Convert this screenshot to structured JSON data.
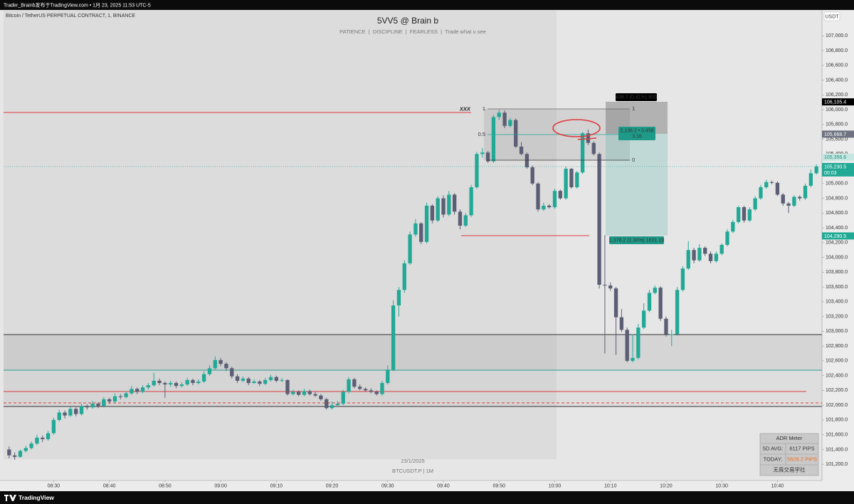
{
  "header": {
    "watermark": "Trader_Brainb发布于TradingView.com • 1月 23, 2025 11:53 UTC-5",
    "brand": "TradingView"
  },
  "chart_data": {
    "type": "candlestick",
    "symbol": "Bitcoin / TetherUS PERPETUAL CONTRACT, 1, BINANCE",
    "title": "5VV5 @ Brain b",
    "subtitle": "PATIENCE  |  DISCIPLINE  |  FEARLESS  |  Trade what u see",
    "currency": "USDT",
    "date_label": "23/1/2025",
    "ticker_label": "BTCUSDT.P | 1M",
    "up_color": "#22a996",
    "down_color": "#5b5e74",
    "xlim": [
      "08:21",
      "10:48"
    ],
    "xticks": [
      "08:30",
      "08:40",
      "08:50",
      "09:00",
      "09:10",
      "09:20",
      "09:30",
      "09:40",
      "09:50",
      "10:00",
      "10:10",
      "10:20",
      "10:30",
      "10:40"
    ],
    "ylim": [
      100980,
      107340
    ],
    "yticks": [
      {
        "value": 101200,
        "label": "101,200.0"
      },
      {
        "value": 101400,
        "label": "101,400.0"
      },
      {
        "value": 101600,
        "label": "101,600.0"
      },
      {
        "value": 101800,
        "label": "101,800.0"
      },
      {
        "value": 102000,
        "label": "102,000.0"
      },
      {
        "value": 102200,
        "label": "102,200.0"
      },
      {
        "value": 102400,
        "label": "102,400.0"
      },
      {
        "value": 102600,
        "label": "102,600.0"
      },
      {
        "value": 102800,
        "label": "102,800.0"
      },
      {
        "value": 103000,
        "label": "103,000.0"
      },
      {
        "value": 103200,
        "label": "103,200.0"
      },
      {
        "value": 103400,
        "label": "103,400.0"
      },
      {
        "value": 103600,
        "label": "103,600.0"
      },
      {
        "value": 103800,
        "label": "103,800.0"
      },
      {
        "value": 104000,
        "label": "104,000.0"
      },
      {
        "value": 104200,
        "label": "104,200.0"
      },
      {
        "value": 104400,
        "label": "104,400.0"
      },
      {
        "value": 104600,
        "label": "104,600.0"
      },
      {
        "value": 104800,
        "label": "104,800.0"
      },
      {
        "value": 105000,
        "label": "105,000.0"
      },
      {
        "value": 105200,
        "label": "105,200.0"
      },
      {
        "value": 105400,
        "label": "105,400.0"
      },
      {
        "value": 105600,
        "label": "105,600.0"
      },
      {
        "value": 105800,
        "label": "105,800.0"
      },
      {
        "value": 106000,
        "label": "106,000.0"
      },
      {
        "value": 106200,
        "label": "106,200.0"
      },
      {
        "value": 106400,
        "label": "106,400.0"
      },
      {
        "value": 106600,
        "label": "106,600.0"
      },
      {
        "value": 106800,
        "label": "106,800.0"
      },
      {
        "value": 107000,
        "label": "107,000.0"
      }
    ],
    "price_tags": [
      {
        "value": 106105.4,
        "label": "106,105.4",
        "color": "#000000",
        "text_color": "#ffffff"
      },
      {
        "value": 105668.7,
        "label": "105,668.7",
        "color": "#6f7280",
        "text_color": "#ffffff"
      },
      {
        "value": 105356.6,
        "label": "105,356.6",
        "color": "#c5e6e1",
        "text_color": "#1f8f80"
      },
      {
        "value": 104290.5,
        "label": "104,290.5",
        "color": "#22a996",
        "text_color": "#ffffff"
      }
    ],
    "last_price": {
      "value": 105230.5,
      "label": "105,230.5",
      "countdown": "00:03",
      "color": "#22a996"
    },
    "annotations": {
      "level_name": "xxx",
      "fib_top_left": "1",
      "fib_mid": "0.5",
      "fib_top_right": "1",
      "fib_bottom_right": "0",
      "target_label": "436.7 (0.41%) 800",
      "ratio_line1": "2,136.2 • 0.458",
      "ratio_line2": "3.16",
      "stop_label": "1,378.2 (1.30%) 1631.19"
    },
    "adr_meter": {
      "title": "ADR Meter",
      "rows": [
        [
          "5D AVG:",
          "6117 PIPS"
        ],
        [
          "TODAY:",
          "5629.2 PIPS"
        ]
      ],
      "footer": "无畏交易学社"
    },
    "x": [
      "08:22",
      "08:23",
      "08:24",
      "08:25",
      "08:26",
      "08:27",
      "08:28",
      "08:29",
      "08:30",
      "08:31",
      "08:32",
      "08:33",
      "08:34",
      "08:35",
      "08:36",
      "08:37",
      "08:38",
      "08:39",
      "08:40",
      "08:41",
      "08:42",
      "08:43",
      "08:44",
      "08:45",
      "08:46",
      "08:47",
      "08:48",
      "08:49",
      "08:50",
      "08:51",
      "08:52",
      "08:53",
      "08:54",
      "08:55",
      "08:56",
      "08:57",
      "08:58",
      "08:59",
      "09:00",
      "09:01",
      "09:02",
      "09:03",
      "09:04",
      "09:05",
      "09:06",
      "09:07",
      "09:08",
      "09:09",
      "09:10",
      "09:11",
      "09:12",
      "09:13",
      "09:14",
      "09:15",
      "09:16",
      "09:17",
      "09:18",
      "09:19",
      "09:20",
      "09:21",
      "09:22",
      "09:23",
      "09:24",
      "09:25",
      "09:26",
      "09:27",
      "09:28",
      "09:29",
      "09:30",
      "09:31",
      "09:32",
      "09:33",
      "09:34",
      "09:35",
      "09:36",
      "09:37",
      "09:38",
      "09:39",
      "09:40",
      "09:41",
      "09:42",
      "09:43",
      "09:44",
      "09:45",
      "09:46",
      "09:47",
      "09:48",
      "09:49",
      "09:50",
      "09:51",
      "09:52",
      "09:53",
      "09:54",
      "09:55",
      "09:56",
      "09:57",
      "09:58",
      "09:59",
      "10:00",
      "10:01",
      "10:02",
      "10:03",
      "10:04",
      "10:05",
      "10:06",
      "10:07",
      "10:08",
      "10:09",
      "10:10",
      "10:11",
      "10:12",
      "10:13",
      "10:14",
      "10:15",
      "10:16",
      "10:17",
      "10:18",
      "10:19",
      "10:20",
      "10:21",
      "10:22",
      "10:23",
      "10:24",
      "10:25",
      "10:26",
      "10:27",
      "10:28",
      "10:29",
      "10:30",
      "10:31",
      "10:32",
      "10:33",
      "10:34",
      "10:35",
      "10:36",
      "10:37",
      "10:38",
      "10:39",
      "10:40",
      "10:41",
      "10:42",
      "10:43",
      "10:44",
      "10:45",
      "10:46",
      "10:47"
    ],
    "ohlc": [
      [
        101400,
        101440,
        101280,
        101320
      ],
      [
        101320,
        101360,
        101260,
        101300
      ],
      [
        101300,
        101400,
        101290,
        101380
      ],
      [
        101380,
        101450,
        101360,
        101420
      ],
      [
        101420,
        101510,
        101400,
        101480
      ],
      [
        101480,
        101600,
        101460,
        101560
      ],
      [
        101560,
        101590,
        101500,
        101540
      ],
      [
        101540,
        101650,
        101520,
        101620
      ],
      [
        101620,
        101830,
        101600,
        101800
      ],
      [
        101800,
        101940,
        101780,
        101900
      ],
      [
        101900,
        101930,
        101820,
        101860
      ],
      [
        101860,
        101980,
        101840,
        101950
      ],
      [
        101950,
        101970,
        101850,
        101880
      ],
      [
        101880,
        102020,
        101860,
        101990
      ],
      [
        101990,
        102010,
        101940,
        101970
      ],
      [
        101970,
        102060,
        101950,
        102020
      ],
      [
        102020,
        102040,
        101960,
        101990
      ],
      [
        101990,
        102110,
        101970,
        102080
      ],
      [
        102080,
        102100,
        102020,
        102050
      ],
      [
        102050,
        102160,
        102030,
        102120
      ],
      [
        102120,
        102150,
        102080,
        102110
      ],
      [
        102110,
        102190,
        102090,
        102160
      ],
      [
        102160,
        102260,
        102140,
        102220
      ],
      [
        102220,
        102240,
        102150,
        102180
      ],
      [
        102180,
        102270,
        102160,
        102240
      ],
      [
        102240,
        102300,
        102210,
        102270
      ],
      [
        102270,
        102440,
        102250,
        102330
      ],
      [
        102330,
        102360,
        102270,
        102300
      ],
      [
        102300,
        102320,
        102100,
        102280
      ],
      [
        102280,
        102330,
        102250,
        102300
      ],
      [
        102300,
        102320,
        102230,
        102260
      ],
      [
        102260,
        102310,
        102240,
        102280
      ],
      [
        102280,
        102370,
        102260,
        102340
      ],
      [
        102340,
        102360,
        102270,
        102300
      ],
      [
        102300,
        102350,
        102280,
        102320
      ],
      [
        102320,
        102460,
        102300,
        102420
      ],
      [
        102420,
        102540,
        102400,
        102500
      ],
      [
        102500,
        102660,
        102480,
        102610
      ],
      [
        102610,
        102640,
        102530,
        102560
      ],
      [
        102560,
        102580,
        102460,
        102500
      ],
      [
        102500,
        102520,
        102360,
        102390
      ],
      [
        102390,
        102420,
        102300,
        102330
      ],
      [
        102330,
        102390,
        102310,
        102360
      ],
      [
        102360,
        102380,
        102270,
        102300
      ],
      [
        102300,
        102350,
        102290,
        102320
      ],
      [
        102320,
        102340,
        102260,
        102290
      ],
      [
        102290,
        102370,
        102270,
        102340
      ],
      [
        102340,
        102410,
        102320,
        102380
      ],
      [
        102380,
        102400,
        102310,
        102330
      ],
      [
        102330,
        102370,
        102310,
        102340
      ],
      [
        102340,
        102350,
        102130,
        102150
      ],
      [
        102150,
        102210,
        102130,
        102180
      ],
      [
        102180,
        102200,
        102120,
        102140
      ],
      [
        102140,
        102220,
        102120,
        102190
      ],
      [
        102190,
        102210,
        102130,
        102150
      ],
      [
        102150,
        102180,
        102110,
        102130
      ],
      [
        102130,
        102150,
        102060,
        102080
      ],
      [
        102080,
        102100,
        101940,
        101960
      ],
      [
        101960,
        102050,
        101940,
        102000
      ],
      [
        102000,
        102060,
        101990,
        102020
      ],
      [
        102020,
        102210,
        102000,
        102180
      ],
      [
        102180,
        102380,
        102160,
        102350
      ],
      [
        102350,
        102370,
        102230,
        102250
      ],
      [
        102250,
        102280,
        102200,
        102220
      ],
      [
        102220,
        102240,
        102180,
        102200
      ],
      [
        102200,
        102230,
        102160,
        102180
      ],
      [
        102180,
        102200,
        102130,
        102150
      ],
      [
        102150,
        102330,
        102130,
        102300
      ],
      [
        102300,
        102540,
        102280,
        102480
      ],
      [
        102480,
        103420,
        102460,
        103350
      ],
      [
        103350,
        103600,
        103200,
        103560
      ],
      [
        103560,
        103960,
        103520,
        103920
      ],
      [
        103920,
        104350,
        103900,
        104310
      ],
      [
        104310,
        104520,
        104280,
        104460
      ],
      [
        104460,
        104480,
        104180,
        104210
      ],
      [
        104210,
        104740,
        104190,
        104700
      ],
      [
        104700,
        104720,
        104460,
        104500
      ],
      [
        104500,
        104830,
        104480,
        104800
      ],
      [
        104800,
        104840,
        104540,
        104580
      ],
      [
        104580,
        104900,
        104560,
        104850
      ],
      [
        104850,
        104870,
        104580,
        104620
      ],
      [
        104620,
        104650,
        104380,
        104430
      ],
      [
        104430,
        104600,
        104410,
        104570
      ],
      [
        104570,
        104980,
        104550,
        104950
      ],
      [
        104950,
        105430,
        104930,
        105400
      ],
      [
        105400,
        105480,
        105350,
        105420
      ],
      [
        105420,
        105440,
        105280,
        105300
      ],
      [
        105300,
        105930,
        105280,
        105900
      ],
      [
        105900,
        106000,
        105860,
        105960
      ],
      [
        105960,
        105990,
        105750,
        105780
      ],
      [
        105780,
        105890,
        105760,
        105860
      ],
      [
        105860,
        105880,
        105480,
        105500
      ],
      [
        105500,
        105560,
        105380,
        105400
      ],
      [
        105400,
        105420,
        105200,
        105220
      ],
      [
        105220,
        105240,
        104980,
        105000
      ],
      [
        105000,
        105020,
        104620,
        104650
      ],
      [
        104650,
        104740,
        104630,
        104700
      ],
      [
        104700,
        104720,
        104660,
        104680
      ],
      [
        104680,
        104930,
        104660,
        104900
      ],
      [
        104900,
        104920,
        104780,
        104800
      ],
      [
        104800,
        105230,
        104780,
        105200
      ],
      [
        105200,
        105210,
        104930,
        104950
      ],
      [
        104950,
        105170,
        104930,
        105150
      ],
      [
        105150,
        105700,
        105130,
        105680
      ],
      [
        105680,
        105730,
        105520,
        105550
      ],
      [
        105550,
        105570,
        105380,
        105400
      ],
      [
        105400,
        105420,
        103580,
        103630
      ],
      [
        103630,
        104300,
        102700,
        103620
      ],
      [
        103620,
        103660,
        103550,
        103580
      ],
      [
        103580,
        103600,
        102680,
        103190
      ],
      [
        103190,
        103300,
        102990,
        103020
      ],
      [
        103020,
        103050,
        102580,
        102600
      ],
      [
        102600,
        102960,
        102580,
        102640
      ],
      [
        102640,
        103100,
        102620,
        103050
      ],
      [
        103050,
        103380,
        103030,
        103280
      ],
      [
        103280,
        103560,
        103260,
        103520
      ],
      [
        103520,
        103620,
        103500,
        103590
      ],
      [
        103590,
        103610,
        103140,
        103170
      ],
      [
        103170,
        103200,
        102930,
        102960
      ],
      [
        102960,
        103020,
        102800,
        102960
      ],
      [
        102960,
        103600,
        102940,
        103560
      ],
      [
        103560,
        103880,
        103540,
        103850
      ],
      [
        103850,
        104220,
        103830,
        104100
      ],
      [
        104100,
        104130,
        103920,
        103960
      ],
      [
        103960,
        104180,
        103940,
        104130
      ],
      [
        104130,
        104150,
        104020,
        104050
      ],
      [
        104050,
        104080,
        103920,
        103950
      ],
      [
        103950,
        104080,
        103930,
        104050
      ],
      [
        104050,
        104190,
        104030,
        104170
      ],
      [
        104170,
        104380,
        104150,
        104350
      ],
      [
        104350,
        104510,
        104330,
        104480
      ],
      [
        104480,
        104700,
        104460,
        104680
      ],
      [
        104680,
        104700,
        104470,
        104500
      ],
      [
        104500,
        104680,
        104480,
        104650
      ],
      [
        104650,
        104830,
        104630,
        104800
      ],
      [
        104800,
        104980,
        104780,
        104950
      ],
      [
        104950,
        105050,
        104930,
        105020
      ],
      [
        105020,
        105040,
        104990,
        105010
      ],
      [
        105010,
        105030,
        104830,
        104850
      ],
      [
        104850,
        104870,
        104700,
        104730
      ],
      [
        104730,
        104750,
        104600,
        104700
      ],
      [
        104700,
        104840,
        104680,
        104820
      ],
      [
        104820,
        104840,
        104770,
        104800
      ],
      [
        104800,
        105000,
        104780,
        104970
      ],
      [
        104970,
        105190,
        104950,
        105140
      ],
      [
        105140,
        105260,
        105120,
        105230
      ]
    ]
  }
}
